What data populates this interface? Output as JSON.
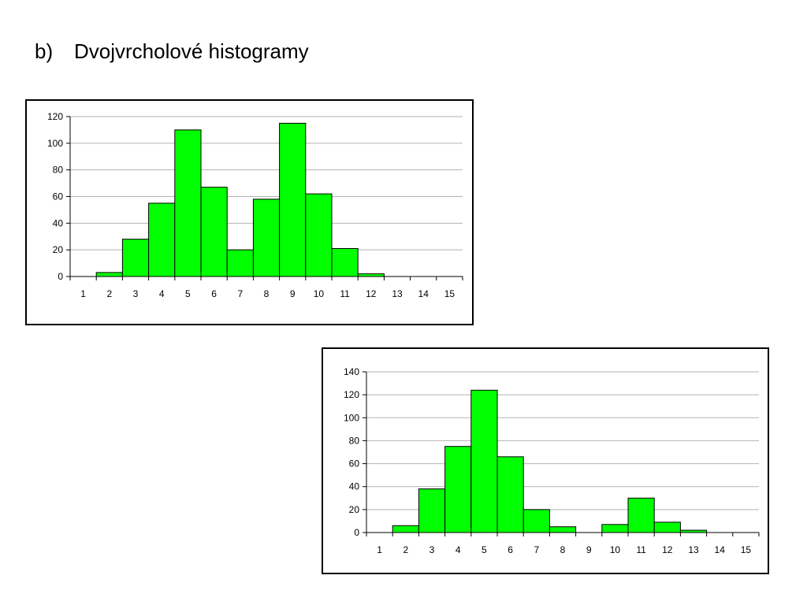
{
  "slide": {
    "marker": "b)",
    "title": "Dvojvrcholové histogramy"
  },
  "colors": {
    "bar_fill": "#00ff00",
    "bar_stroke": "#000000",
    "gridline": "#b3b3b3",
    "axis": "#000000"
  },
  "chart_data": [
    {
      "type": "bar",
      "title": "",
      "xlabel": "",
      "ylabel": "",
      "categories": [
        "1",
        "2",
        "3",
        "4",
        "5",
        "6",
        "7",
        "8",
        "9",
        "10",
        "11",
        "12",
        "13",
        "14",
        "15"
      ],
      "values": [
        0,
        3,
        28,
        55,
        110,
        67,
        20,
        58,
        115,
        62,
        21,
        2,
        0,
        0,
        0
      ],
      "ylim": [
        0,
        120
      ],
      "yticks": [
        0,
        20,
        40,
        60,
        80,
        100,
        120
      ],
      "grid": true,
      "legend": "none"
    },
    {
      "type": "bar",
      "title": "",
      "xlabel": "",
      "ylabel": "",
      "categories": [
        "1",
        "2",
        "3",
        "4",
        "5",
        "6",
        "7",
        "8",
        "9",
        "10",
        "11",
        "12",
        "13",
        "14",
        "15"
      ],
      "values": [
        0,
        6,
        38,
        75,
        124,
        66,
        20,
        5,
        0,
        7,
        30,
        9,
        2,
        0,
        0
      ],
      "ylim": [
        0,
        140
      ],
      "yticks": [
        0,
        20,
        40,
        60,
        80,
        100,
        120,
        140
      ],
      "grid": true,
      "legend": "none"
    }
  ]
}
